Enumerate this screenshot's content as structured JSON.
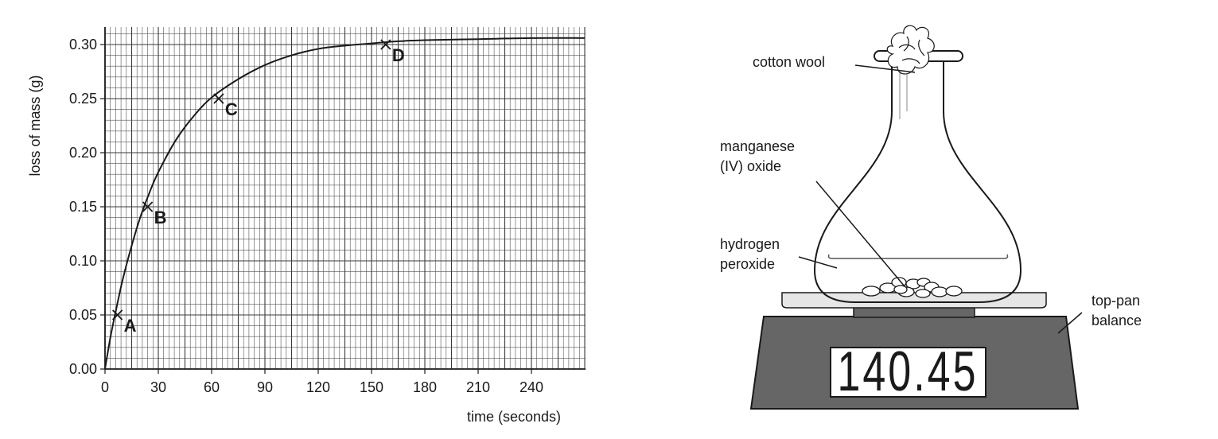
{
  "chart_data": {
    "type": "line",
    "xlabel": "time (seconds)",
    "ylabel": "loss of mass (g)",
    "xlim": [
      0,
      270
    ],
    "ylim": [
      0,
      0.32
    ],
    "x_ticks": [
      0,
      30,
      60,
      90,
      120,
      150,
      180,
      210,
      240
    ],
    "x_tick_labels": [
      "0",
      "30",
      "60",
      "90",
      "120",
      "150",
      "180",
      "210",
      "240"
    ],
    "y_ticks": [
      0,
      0.05,
      0.1,
      0.15,
      0.2,
      0.25,
      0.3
    ],
    "y_tick_labels": [
      "0.00",
      "0.05",
      "0.10",
      "0.15",
      "0.20",
      "0.25",
      "0.30"
    ],
    "grid": true,
    "series": [
      {
        "x": [
          0,
          3,
          6,
          10,
          15,
          20,
          25,
          30,
          40,
          50,
          60,
          75,
          90,
          105,
          120,
          135,
          150,
          165,
          180,
          210,
          240,
          270
        ],
        "y": [
          0,
          0.029,
          0.053,
          0.083,
          0.114,
          0.141,
          0.163,
          0.182,
          0.212,
          0.234,
          0.251,
          0.268,
          0.281,
          0.29,
          0.296,
          0.299,
          0.301,
          0.303,
          0.304,
          0.305,
          0.306,
          0.306
        ]
      }
    ],
    "points": [
      {
        "label": "A",
        "x": 7,
        "y": 0.05
      },
      {
        "label": "B",
        "x": 24,
        "y": 0.15
      },
      {
        "label": "C",
        "x": 64,
        "y": 0.25
      },
      {
        "label": "D",
        "x": 158,
        "y": 0.3
      }
    ]
  },
  "apparatus": {
    "labels": {
      "cotton_wool": "cotton wool",
      "manganese_1": "manganese",
      "manganese_2": "(IV) oxide",
      "hydrogen_1": "hydrogen",
      "hydrogen_2": "peroxide",
      "balance_1": "top-pan",
      "balance_2": "balance"
    },
    "display_reading": "140.45",
    "colors": {
      "balance_body": "#666666",
      "balance_pan": "#e6e6e6",
      "display_bg": "#ffffff",
      "line": "#1a1a1a"
    }
  }
}
